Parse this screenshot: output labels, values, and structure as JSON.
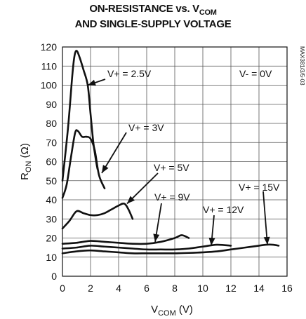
{
  "title": {
    "line1": "ON-RESISTANCE vs. V",
    "line1_sub": "COM",
    "line2": "AND SINGLE-SUPPLY VOLTAGE"
  },
  "figure_tag": "MAX381/3/5-03",
  "chart_data": {
    "type": "line",
    "xlabel": {
      "main": "V",
      "sub": "COM",
      "unit": " (V)"
    },
    "ylabel": {
      "main": "R",
      "sub": "ON",
      "unit": " (Ω)"
    },
    "xlim": [
      0,
      16
    ],
    "ylim": [
      0,
      120
    ],
    "xticks": [
      0,
      2,
      4,
      6,
      8,
      10,
      12,
      14,
      16
    ],
    "yticks": [
      0,
      10,
      20,
      30,
      40,
      50,
      60,
      70,
      80,
      90,
      100,
      110,
      120
    ],
    "grid": true,
    "series": [
      {
        "name": "V+ = 2.5V",
        "x": [
          0,
          0.4,
          0.7,
          0.85,
          1.0,
          1.2,
          1.5,
          1.8,
          2.0,
          2.2,
          2.4,
          2.5
        ],
        "y": [
          50,
          78,
          105,
          115,
          118,
          115,
          108,
          100,
          85,
          70,
          60,
          56
        ]
      },
      {
        "name": "V+ = 3V",
        "x": [
          0,
          0.3,
          0.6,
          0.9,
          1.1,
          1.4,
          1.7,
          2.0,
          2.3,
          2.6,
          3.0
        ],
        "y": [
          41,
          48,
          62,
          75,
          76,
          73,
          73,
          72,
          66,
          53,
          46
        ]
      },
      {
        "name": "V+ = 5V",
        "x": [
          0,
          0.5,
          1.0,
          1.5,
          2.0,
          2.5,
          3.0,
          3.5,
          4.0,
          4.4,
          4.7,
          5.0
        ],
        "y": [
          25,
          29,
          34,
          33,
          32,
          32,
          33,
          35,
          37,
          38,
          35,
          30
        ]
      },
      {
        "name": "V+ = 9V",
        "x": [
          0,
          1,
          2,
          3,
          4,
          5,
          6,
          7,
          8,
          8.5,
          9
        ],
        "y": [
          17,
          17.5,
          18.5,
          18,
          17.5,
          17,
          17,
          18,
          20,
          21.5,
          20
        ]
      },
      {
        "name": "V+ = 12V",
        "x": [
          0,
          1,
          2,
          3,
          4,
          5,
          6,
          7,
          8,
          9,
          10,
          11,
          12
        ],
        "y": [
          14.5,
          15,
          16,
          15.5,
          15,
          14.5,
          14,
          14,
          14,
          14.5,
          15.5,
          16.5,
          16
        ]
      },
      {
        "name": "V+ = 15V",
        "x": [
          0,
          1,
          2,
          3,
          4,
          5,
          6,
          7,
          8,
          9,
          10,
          11,
          12,
          13,
          14,
          14.5,
          15,
          15.4
        ],
        "y": [
          12,
          13,
          13.5,
          13,
          12.5,
          12,
          12,
          12,
          12,
          12.2,
          12.5,
          13,
          14,
          15,
          16,
          16.5,
          16.5,
          16
        ]
      }
    ],
    "annotations": [
      {
        "text": "V+ = 2.5V",
        "series": "V+ = 2.5V",
        "target": [
          1.8,
          100
        ]
      },
      {
        "text": "V+ = 3V",
        "series": "V+ = 3V",
        "target": [
          2.8,
          54
        ]
      },
      {
        "text": "V+ = 5V",
        "series": "V+ = 5V",
        "target": [
          4.6,
          38
        ]
      },
      {
        "text": "V+ = 9V",
        "series": "V+ = 9V",
        "target": [
          6.6,
          18
        ]
      },
      {
        "text": "V+ = 12V",
        "series": "V+ = 12V",
        "target": [
          10.6,
          16
        ]
      },
      {
        "text": "V+ = 15V",
        "series": "V+ = 15V",
        "target": [
          14.6,
          16.5
        ]
      }
    ],
    "note": "V- = 0V"
  }
}
